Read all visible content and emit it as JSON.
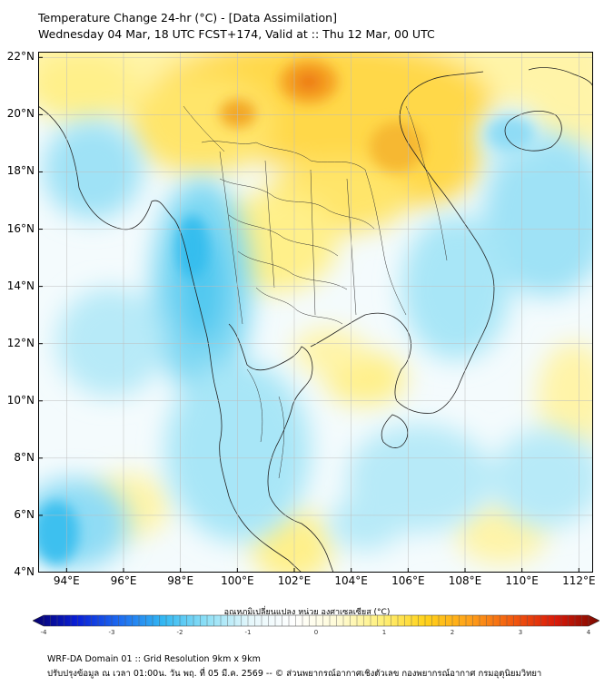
{
  "header": {
    "title_line1": "Temperature Change 24-hr (°C) - [Data Assimilation]",
    "title_line2": "Wednesday 04 Mar, 18 UTC FCST+174, Valid at :: Thu 12 Mar, 00 UTC"
  },
  "map": {
    "lon_range": [
      93,
      112.5
    ],
    "lat_range": [
      4,
      22.2
    ],
    "lat_labels": [
      "22°N",
      "20°N",
      "18°N",
      "16°N",
      "14°N",
      "12°N",
      "10°N",
      "8°N",
      "6°N",
      "4°N"
    ],
    "lon_labels": [
      "94°E",
      "96°E",
      "98°E",
      "100°E",
      "102°E",
      "104°E",
      "106°E",
      "108°E",
      "110°E",
      "112°E"
    ],
    "lat_values": [
      22,
      20,
      18,
      16,
      14,
      12,
      10,
      8,
      6,
      4
    ],
    "lon_values": [
      94,
      96,
      98,
      100,
      102,
      104,
      106,
      108,
      110,
      112
    ],
    "grid": true
  },
  "colorbar": {
    "title": "อุณหภูมิเปลี่ยนแปลง หน่วย องศาเซลเซียส (°C)",
    "ticks": [
      "-4",
      "-3",
      "-2",
      "-1",
      "0",
      "1",
      "2",
      "3",
      "4"
    ],
    "tick_values": [
      -4,
      -3,
      -2,
      -1,
      0,
      1,
      2,
      3,
      4
    ],
    "range": [
      -4,
      4
    ],
    "colors": [
      "#06006b",
      "#0a1fd6",
      "#1e6cf0",
      "#33b8f2",
      "#8fe0f6",
      "#e6f7fb",
      "#ffffff",
      "#fffbd6",
      "#fff07a",
      "#ffd21a",
      "#ffa21a",
      "#f25a0f",
      "#d91a0a",
      "#7a0a00"
    ]
  },
  "footer": {
    "line1": "WRF-DA Domain 01 :: Grid Resolution 9km x 9km",
    "line2": "ปรับปรุงข้อมูล ณ เวลา 01:00น. วัน พฤ. ที่ 05 มี.ค. 2569 -- © ส่วนพยากรณ์อากาศเชิงตัวเลข กองพยากรณ์อากาศ กรมอุตุนิยมวิทยา"
  }
}
